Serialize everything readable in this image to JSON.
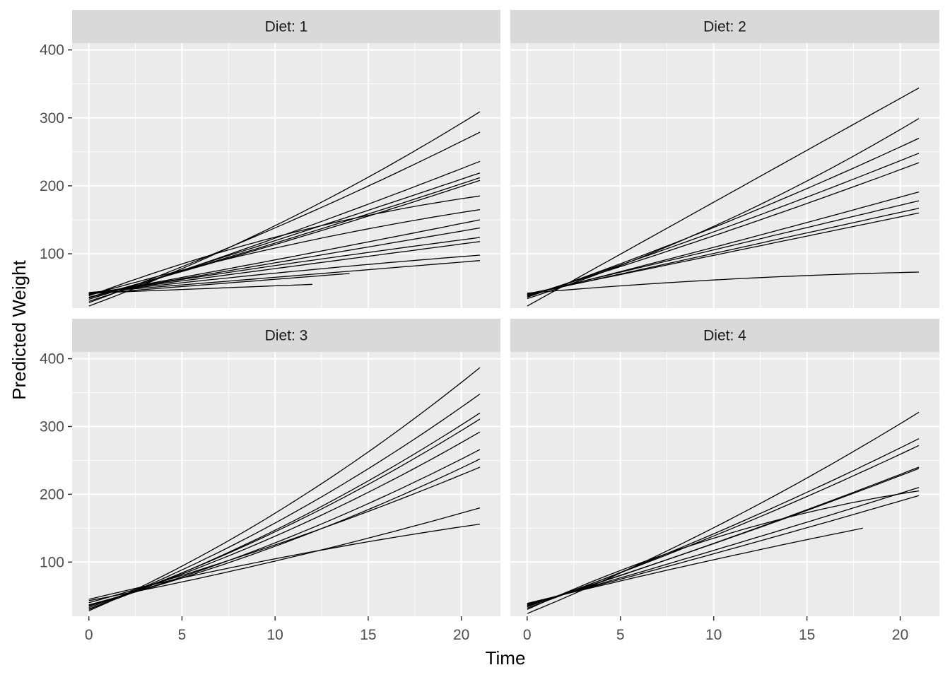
{
  "chart_data": {
    "type": "line",
    "facet_label_prefix": "Diet: ",
    "xlabel": "Time",
    "ylabel": "Predicted Weight",
    "xlim": [
      -0.9,
      22.1
    ],
    "ylim": [
      20,
      410
    ],
    "x_ticks": [
      0,
      5,
      10,
      15,
      20
    ],
    "y_ticks": [
      100,
      200,
      300,
      400
    ],
    "grid": true,
    "legend": "none",
    "colors": {
      "panel_bg": "#ebebeb",
      "strip_bg": "#d9d9d9",
      "grid": "#ffffff",
      "line": "#000000"
    },
    "panels": [
      {
        "facet": "1",
        "series": [
          {
            "x": [
              0,
              21
            ],
            "y": [
              23,
              309
            ],
            "curve": 0.25
          },
          {
            "x": [
              0,
              21
            ],
            "y": [
              28,
              279
            ],
            "curve": 0.15
          },
          {
            "x": [
              0,
              21
            ],
            "y": [
              30,
              236
            ],
            "curve": 0.1
          },
          {
            "x": [
              0,
              21
            ],
            "y": [
              33,
              219
            ],
            "curve": 0.05
          },
          {
            "x": [
              0,
              21
            ],
            "y": [
              35,
              212
            ],
            "curve": 0.08
          },
          {
            "x": [
              0,
              21
            ],
            "y": [
              36,
              208
            ],
            "curve": 0.1
          },
          {
            "x": [
              0,
              21
            ],
            "y": [
              38,
              185
            ],
            "curve": -0.45
          },
          {
            "x": [
              0,
              21
            ],
            "y": [
              39,
              165
            ],
            "curve": -0.3
          },
          {
            "x": [
              0,
              21
            ],
            "y": [
              40,
              150
            ],
            "curve": 0.05
          },
          {
            "x": [
              0,
              21
            ],
            "y": [
              40,
              138
            ],
            "curve": 0.0
          },
          {
            "x": [
              0,
              21
            ],
            "y": [
              41,
              124
            ],
            "curve": -0.1
          },
          {
            "x": [
              0,
              21
            ],
            "y": [
              42,
              118
            ],
            "curve": 0.0
          },
          {
            "x": [
              0,
              21
            ],
            "y": [
              42,
              98
            ],
            "curve": -0.2
          },
          {
            "x": [
              0,
              21
            ],
            "y": [
              43,
              90
            ],
            "curve": 0.0
          },
          {
            "x": [
              0,
              14
            ],
            "y": [
              41,
              71
            ],
            "curve": 0.0
          },
          {
            "x": [
              0,
              12
            ],
            "y": [
              42,
              55
            ],
            "curve": 0.0
          }
        ]
      },
      {
        "facet": "2",
        "series": [
          {
            "x": [
              0,
              21
            ],
            "y": [
              23,
              344
            ],
            "curve": 0.0
          },
          {
            "x": [
              0,
              21
            ],
            "y": [
              34,
              299
            ],
            "curve": 0.3
          },
          {
            "x": [
              0,
              21
            ],
            "y": [
              36,
              270
            ],
            "curve": 0.15
          },
          {
            "x": [
              0,
              21
            ],
            "y": [
              37,
              248
            ],
            "curve": 0.1
          },
          {
            "x": [
              0,
              21
            ],
            "y": [
              38,
              234
            ],
            "curve": 0.1
          },
          {
            "x": [
              0,
              21
            ],
            "y": [
              39,
              191
            ],
            "curve": 0.05
          },
          {
            "x": [
              0,
              21
            ],
            "y": [
              40,
              178
            ],
            "curve": 0.0
          },
          {
            "x": [
              0,
              21
            ],
            "y": [
              40,
              167
            ],
            "curve": 0.0
          },
          {
            "x": [
              0,
              21
            ],
            "y": [
              41,
              160
            ],
            "curve": 0.0
          },
          {
            "x": [
              0,
              21
            ],
            "y": [
              42,
              73
            ],
            "curve": -0.6
          }
        ]
      },
      {
        "facet": "3",
        "series": [
          {
            "x": [
              0,
              21
            ],
            "y": [
              28,
              387
            ],
            "curve": 0.3
          },
          {
            "x": [
              0,
              21
            ],
            "y": [
              30,
              348
            ],
            "curve": 0.3
          },
          {
            "x": [
              0,
              21
            ],
            "y": [
              31,
              320
            ],
            "curve": 0.3
          },
          {
            "x": [
              0,
              21
            ],
            "y": [
              33,
              311
            ],
            "curve": 0.3
          },
          {
            "x": [
              0,
              21
            ],
            "y": [
              35,
              292
            ],
            "curve": 0.3
          },
          {
            "x": [
              0,
              21
            ],
            "y": [
              36,
              266
            ],
            "curve": 0.3
          },
          {
            "x": [
              0,
              21
            ],
            "y": [
              37,
              252
            ],
            "curve": 0.3
          },
          {
            "x": [
              0,
              21
            ],
            "y": [
              40,
              240
            ],
            "curve": 0.2
          },
          {
            "x": [
              0,
              21
            ],
            "y": [
              43,
              180
            ],
            "curve": 0.2
          },
          {
            "x": [
              0,
              21
            ],
            "y": [
              45,
              156
            ],
            "curve": -0.25
          }
        ]
      },
      {
        "facet": "4",
        "series": [
          {
            "x": [
              0,
              21
            ],
            "y": [
              24,
              321
            ],
            "curve": 0.2
          },
          {
            "x": [
              0,
              21
            ],
            "y": [
              32,
              282
            ],
            "curve": 0.15
          },
          {
            "x": [
              0,
              21
            ],
            "y": [
              34,
              272
            ],
            "curve": 0.15
          },
          {
            "x": [
              0,
              21
            ],
            "y": [
              35,
              240
            ],
            "curve": 0.1
          },
          {
            "x": [
              0,
              21
            ],
            "y": [
              36,
              238
            ],
            "curve": 0.1
          },
          {
            "x": [
              0,
              21
            ],
            "y": [
              30,
              205
            ],
            "curve": -0.5
          },
          {
            "x": [
              0,
              21
            ],
            "y": [
              37,
              210
            ],
            "curve": 0.05
          },
          {
            "x": [
              0,
              21
            ],
            "y": [
              38,
              198
            ],
            "curve": 0.05
          },
          {
            "x": [
              0,
              18
            ],
            "y": [
              39,
              150
            ],
            "curve": -0.1
          }
        ]
      }
    ]
  }
}
